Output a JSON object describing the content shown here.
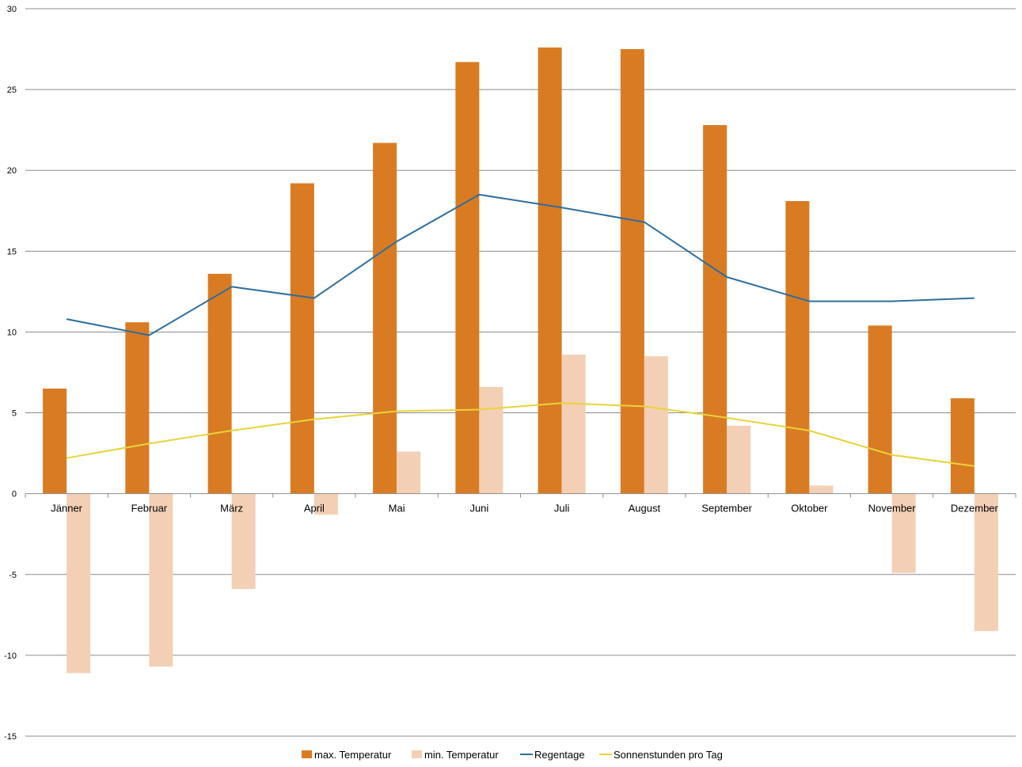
{
  "chart_data": {
    "type": "bar",
    "title": "",
    "xlabel": "",
    "ylabel": "",
    "ylim": [
      -15,
      30
    ],
    "yticks": [
      30,
      25,
      20,
      15,
      10,
      5,
      0,
      -5,
      -10,
      -15
    ],
    "grid": true,
    "legend_position": "bottom",
    "categories": [
      "Jänner",
      "Februar",
      "März",
      "April",
      "Mai",
      "Juni",
      "Juli",
      "August",
      "September",
      "Oktober",
      "November",
      "Dezember"
    ],
    "series": [
      {
        "name": "max. Temperatur",
        "kind": "bar",
        "color": "#D97B22",
        "values": [
          6.5,
          10.6,
          13.6,
          19.2,
          21.7,
          26.7,
          27.6,
          27.5,
          22.8,
          18.1,
          10.4,
          5.9
        ]
      },
      {
        "name": "min. Temperatur",
        "kind": "bar",
        "color": "#F3D0B5",
        "values": [
          -11.1,
          -10.7,
          -5.9,
          -1.3,
          2.6,
          6.6,
          8.6,
          8.5,
          4.2,
          0.5,
          -4.9,
          -8.5
        ]
      },
      {
        "name": "Regentage",
        "kind": "line",
        "color": "#2E6E9E",
        "values": [
          10.8,
          9.8,
          12.8,
          12.1,
          15.6,
          18.5,
          17.7,
          16.8,
          13.4,
          11.9,
          11.9,
          12.1
        ]
      },
      {
        "name": "Sonnenstunden pro Tag",
        "kind": "line",
        "color": "#E8D33A",
        "values": [
          2.2,
          3.1,
          3.9,
          4.6,
          5.1,
          5.2,
          5.6,
          5.4,
          4.7,
          3.9,
          2.4,
          1.7
        ]
      }
    ]
  }
}
